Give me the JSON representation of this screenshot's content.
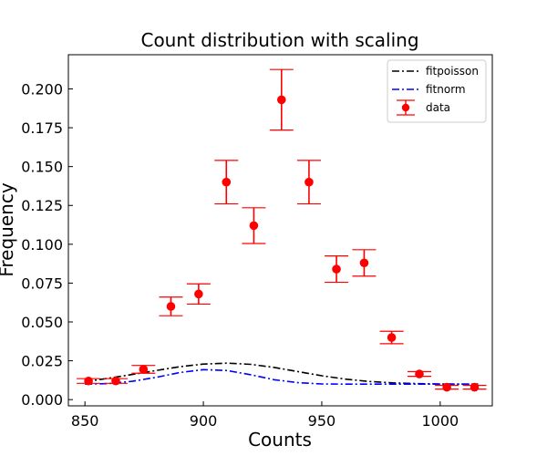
{
  "chart_data": {
    "type": "scatter",
    "title": "Count distribution with scaling",
    "xlabel": "Counts",
    "ylabel": "Frequency",
    "xlim": [
      843,
      1022
    ],
    "ylim": [
      -0.004,
      0.222
    ],
    "xticks": [
      850,
      900,
      950,
      1000
    ],
    "xtick_labels": [
      "850",
      "900",
      "950",
      "1000"
    ],
    "yticks": [
      0.0,
      0.025,
      0.05,
      0.075,
      0.1,
      0.125,
      0.15,
      0.175,
      0.2
    ],
    "ytick_labels": [
      "0.000",
      "0.025",
      "0.050",
      "0.075",
      "0.100",
      "0.125",
      "0.150",
      "0.175",
      "0.200"
    ],
    "grid": false,
    "legend_position": "top-right",
    "series": [
      {
        "name": "fitpoisson",
        "kind": "line",
        "style": "dash-dot",
        "color": "#000000",
        "x": [
          850,
          860,
          870,
          880,
          890,
          900,
          910,
          920,
          930,
          940,
          950,
          960,
          970,
          980,
          990,
          1000,
          1010,
          1016
        ],
        "y": [
          0.0115,
          0.0138,
          0.0162,
          0.0187,
          0.0212,
          0.0229,
          0.0235,
          0.0227,
          0.0207,
          0.018,
          0.0154,
          0.0132,
          0.0117,
          0.0108,
          0.0103,
          0.0101,
          0.01,
          0.01
        ]
      },
      {
        "name": "fitnorm",
        "kind": "line",
        "style": "dash-dot",
        "color": "#0000ff",
        "x": [
          850,
          860,
          870,
          880,
          890,
          900,
          910,
          920,
          930,
          940,
          950,
          960,
          970,
          980,
          990,
          1000,
          1010,
          1016
        ],
        "y": [
          0.01,
          0.0103,
          0.0118,
          0.0143,
          0.0174,
          0.0193,
          0.0187,
          0.016,
          0.0128,
          0.0109,
          0.0101,
          0.01,
          0.01,
          0.01,
          0.01,
          0.01,
          0.01,
          0.01
        ]
      },
      {
        "name": "data",
        "kind": "errorbar",
        "color": "#ff0000",
        "x": [
          851.5,
          863,
          874.7,
          886.3,
          898,
          909.7,
          921.3,
          933,
          944.6,
          956.2,
          967.9,
          979.5,
          991.2,
          1002.8,
          1014.5
        ],
        "y": [
          0.012,
          0.012,
          0.0195,
          0.06,
          0.068,
          0.14,
          0.112,
          0.193,
          0.14,
          0.084,
          0.088,
          0.04,
          0.0165,
          0.008,
          0.008
        ],
        "yerr": [
          0.0015,
          0.0015,
          0.0025,
          0.006,
          0.0065,
          0.014,
          0.0115,
          0.0195,
          0.014,
          0.0085,
          0.0085,
          0.004,
          0.0015,
          0.0012,
          0.0012
        ]
      }
    ]
  }
}
